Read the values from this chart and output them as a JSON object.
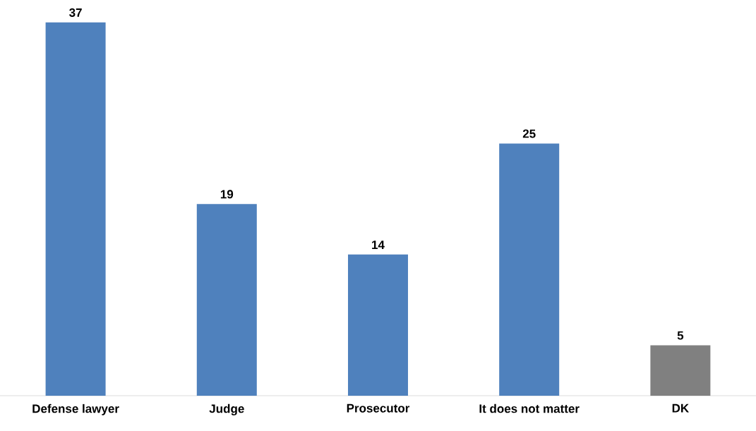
{
  "chart_data": {
    "type": "bar",
    "categories": [
      "Defense lawyer",
      "Judge",
      "Prosecutor",
      "It does not matter",
      "DK"
    ],
    "values": [
      37,
      19,
      14,
      25,
      5
    ],
    "colors": [
      "#4f81bd",
      "#4f81bd",
      "#4f81bd",
      "#4f81bd",
      "#808080"
    ],
    "data_labels": true
  }
}
